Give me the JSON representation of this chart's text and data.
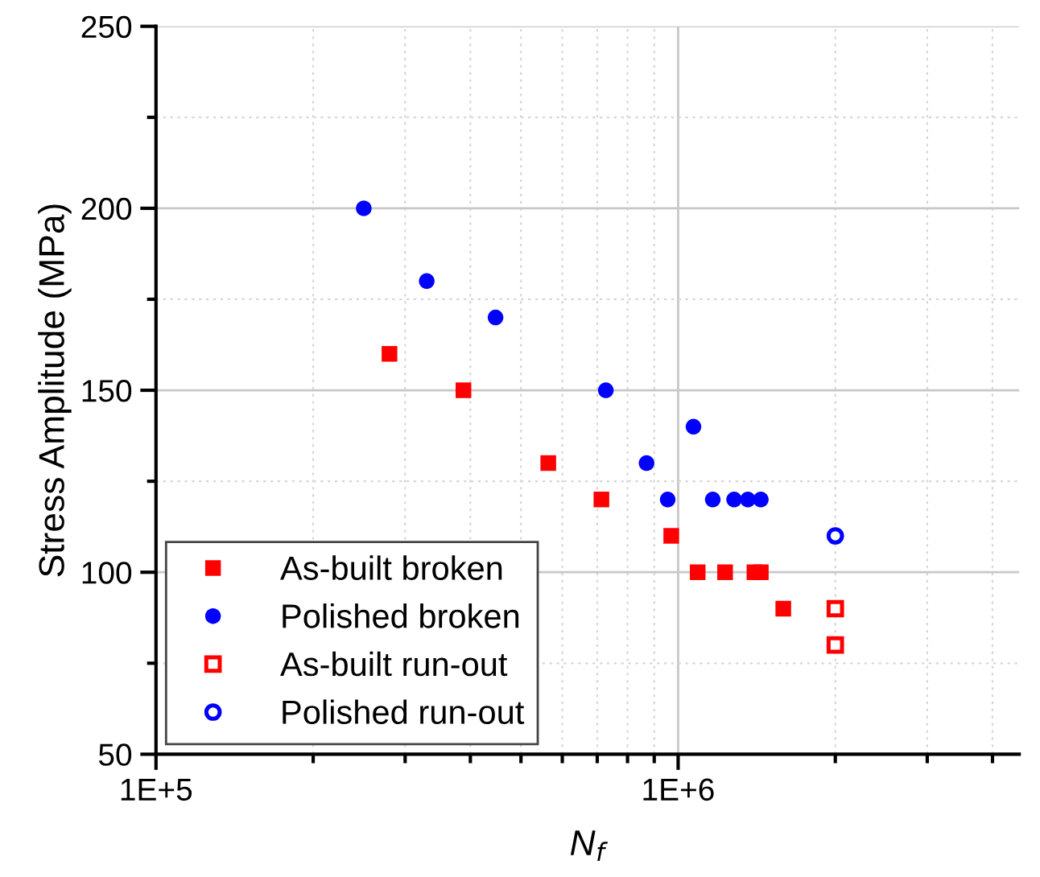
{
  "chart_data": {
    "type": "scatter",
    "xlabel": "N$_{f}$",
    "ylabel": "Stress Amplitude (MPa)",
    "log": "x",
    "xlim": [
      100000,
      4500000
    ],
    "xticks": [
      {
        "value": 100000,
        "label": "1E+5"
      },
      {
        "value": 1000000,
        "label": "1E+6"
      }
    ],
    "ylim": [
      50,
      250
    ],
    "yticks": [
      50,
      100,
      150,
      200,
      250
    ],
    "grid": true,
    "legend": "bottom left",
    "series": [
      {
        "name": "As-built broken",
        "color": "#ff0000",
        "marker": "square",
        "x": [
          280000,
          388000,
          564000,
          713000,
          970000,
          1090000,
          1230000,
          1400000,
          1440000,
          1590000
        ],
        "values": [
          160,
          150,
          130,
          120,
          110,
          100,
          100,
          100,
          100,
          90
        ]
      },
      {
        "name": "Polished broken",
        "color": "#0000ff",
        "marker": "circle",
        "x": [
          250000,
          330000,
          447000,
          727000,
          1070000,
          870000,
          955000,
          1165000,
          1280000,
          1360000,
          1440000
        ],
        "values": [
          200,
          180,
          170,
          150,
          140,
          130,
          120,
          120,
          120,
          120,
          120
        ]
      },
      {
        "name": "As-built run-out",
        "color": "#ff0000",
        "marker": "square",
        "x": [
          2000000,
          2000000
        ],
        "values": [
          90,
          80
        ]
      },
      {
        "name": "Polished run-out",
        "color": "#0000ff",
        "marker": "circle",
        "x": [
          2000000
        ],
        "values": [
          110
        ]
      }
    ]
  }
}
